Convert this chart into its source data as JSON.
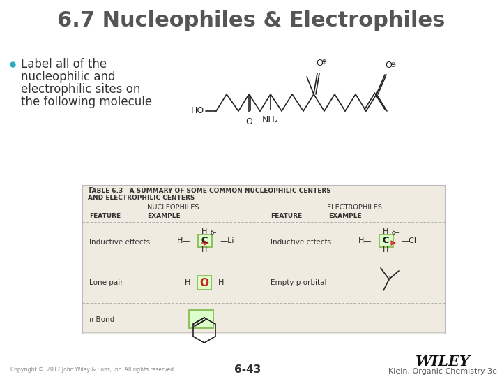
{
  "title": "6.7 Nucleophiles & Electrophiles",
  "title_color": "#555555",
  "title_fontsize": 22,
  "bullet_color": "#2AACBB",
  "bullet_text_lines": [
    "Label all of the",
    "nucleophilic and",
    "electrophilic sites on",
    "the following molecule"
  ],
  "bullet_fontsize": 12,
  "bg_color": "#FFFFFF",
  "footer_copyright": "Copyright ©  2017 John Wiley & Sons, Inc. All rights reserved.",
  "footer_page": "6-43",
  "footer_wiley": "WILEY",
  "footer_book": "Klein, Organic Chemistry 3e",
  "table_bg": "#F0EBE0",
  "sub_headers": [
    "FEATURE",
    "EXAMPLE",
    "FEATURE",
    "EXAMPLE"
  ],
  "row1_left": "Inductive effects",
  "row1_right": "Inductive effects",
  "row2_left": "Lone pair",
  "row2_right": "Empty p orbital",
  "row3_left": "π Bond",
  "mol_color": "#222222",
  "green_box_color": "#88BB55",
  "red_arrow_color": "#CC2222",
  "red_text_color": "#CC2222"
}
